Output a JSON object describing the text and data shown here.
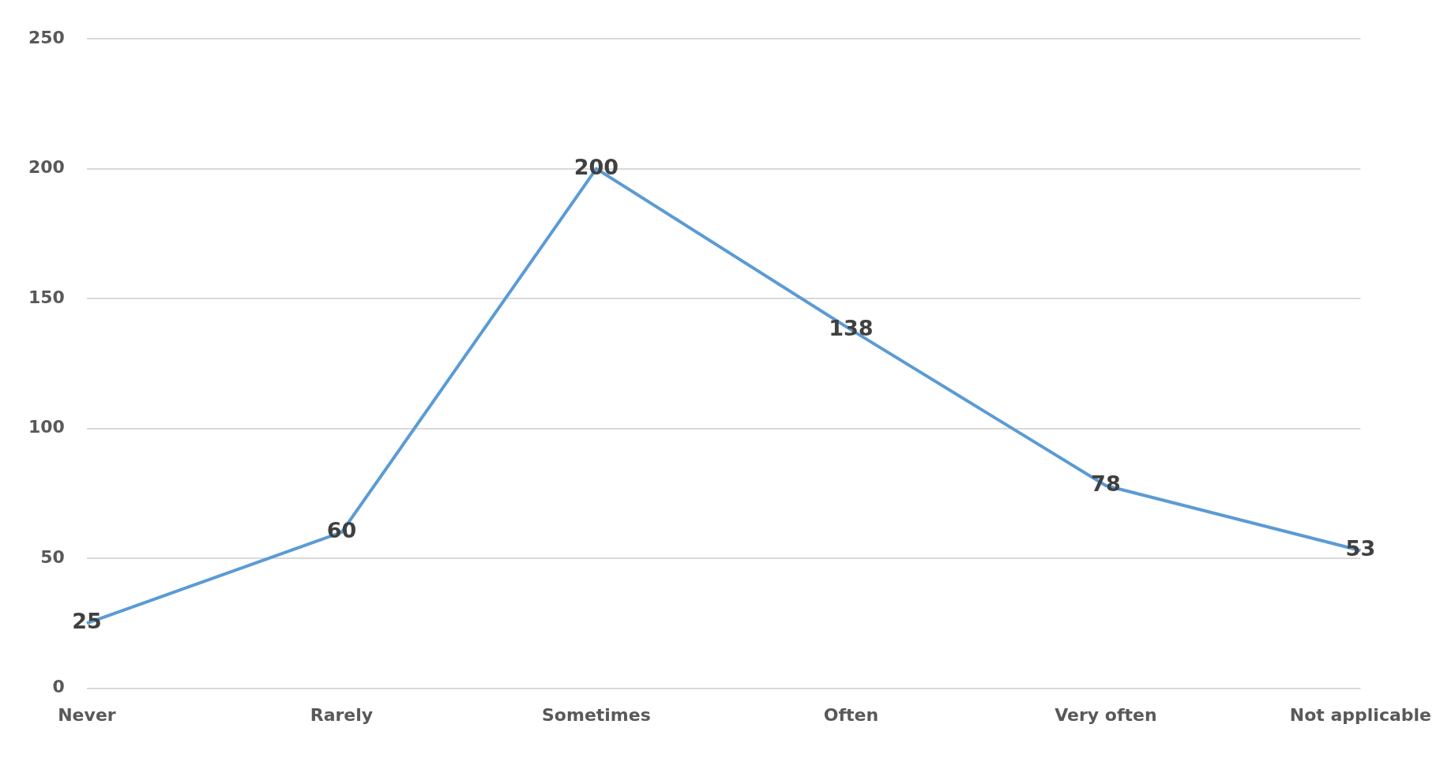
{
  "chart_data": {
    "type": "line",
    "categories": [
      "Never",
      "Rarely",
      "Sometimes",
      "Often",
      "Very often",
      "Not applicable"
    ],
    "series": [
      {
        "color": "#5b9bd5",
        "values": [
          25,
          60,
          200,
          138,
          78,
          53
        ]
      }
    ],
    "ylim": [
      0,
      250
    ],
    "yticks": [
      0,
      50,
      100,
      150,
      200,
      250
    ],
    "grid": "y",
    "legend": false,
    "marker": "none",
    "line_style": "solid",
    "data_labels": true
  }
}
